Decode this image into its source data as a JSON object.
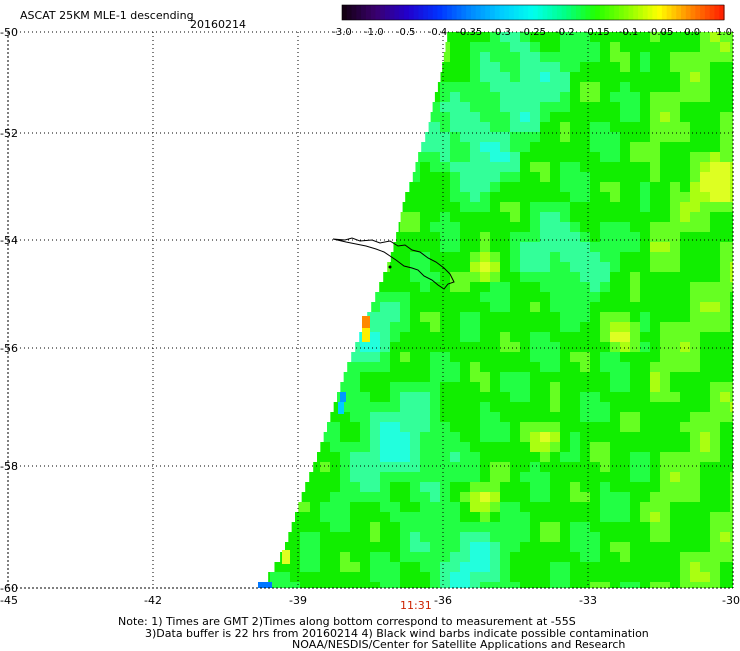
{
  "title": "ASCAT 25KM MLE-1 descending",
  "date": "20160214",
  "colorbar": {
    "labels": [
      "-3.0",
      "-1.0",
      "-0.5",
      "-0.4",
      "-0.35",
      "-0.3",
      "-0.25",
      "-0.2",
      "-0.15",
      "-0.1",
      "-0.05",
      "0.0",
      "1.0"
    ],
    "colors": [
      "#140014",
      "#3a006e",
      "#2200cc",
      "#0033ff",
      "#0088ff",
      "#00ccff",
      "#00ffee",
      "#00ff88",
      "#22ff00",
      "#88ff00",
      "#ffff00",
      "#ff8800",
      "#ff2200"
    ]
  },
  "axes": {
    "lon_ticks": [
      "-45",
      "-42",
      "-39",
      "-36",
      "-33",
      "-30"
    ],
    "lat_ticks": [
      "-50",
      "-52",
      "-54",
      "-56",
      "-58",
      "-60"
    ]
  },
  "time_label": "11:31",
  "notes": [
    "Note: 1) Times are GMT 2)Times along bottom correspond to measurement at -55S",
    "3)Data buffer is 22 hrs from 20160214 4) Black wind barbs indicate possible contamination",
    "NOAA/NESDIS/Center for Satellite Applications and Research"
  ]
}
